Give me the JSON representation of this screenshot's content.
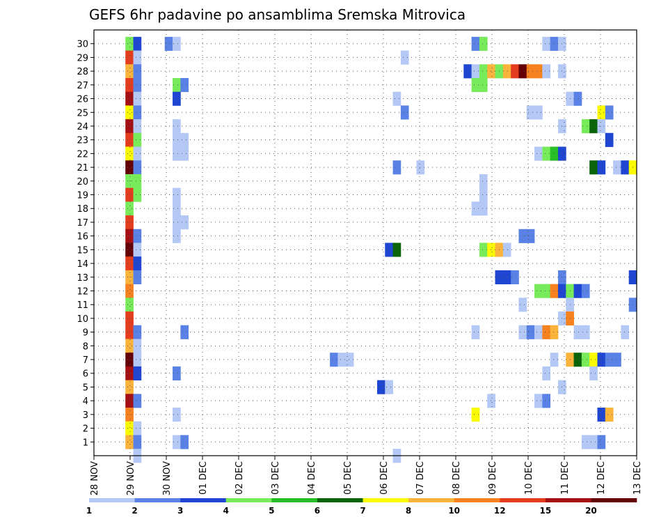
{
  "chart_data": {
    "type": "heatmap",
    "title": "GEFS 6hr padavine po ansamblima Sremska Mitrovica",
    "xlabel": "",
    "ylabel": "",
    "x_ticks": [
      "28 NOV",
      "29 NOV",
      "30 NOV",
      "01 DEC",
      "02 DEC",
      "03 DEC",
      "04 DEC",
      "05 DEC",
      "06 DEC",
      "07 DEC",
      "08 DEC",
      "09 DEC",
      "10 DEC",
      "11 DEC",
      "12 DEC",
      "13 DEC"
    ],
    "y_ticks": [
      1,
      2,
      3,
      4,
      5,
      6,
      7,
      8,
      9,
      10,
      11,
      12,
      13,
      14,
      15,
      16,
      17,
      18,
      19,
      20,
      21,
      22,
      23,
      24,
      25,
      26,
      27,
      28,
      29,
      30
    ],
    "ylim": [
      0,
      30
    ],
    "grid": true,
    "colorbar": {
      "labels": [
        "1",
        "2",
        "3",
        "4",
        "5",
        "6",
        "7",
        "8",
        "10",
        "12",
        "15",
        "20"
      ],
      "bins": [
        {
          "lo": 1,
          "hi": 2,
          "color": "#b4c8f5"
        },
        {
          "lo": 2,
          "hi": 3,
          "color": "#5a82e6"
        },
        {
          "lo": 3,
          "hi": 4,
          "color": "#1e46d2"
        },
        {
          "lo": 4,
          "hi": 5,
          "color": "#78eb5a"
        },
        {
          "lo": 5,
          "hi": 6,
          "color": "#28be28"
        },
        {
          "lo": 6,
          "hi": 7,
          "color": "#0a640a"
        },
        {
          "lo": 7,
          "hi": 8,
          "color": "#fafa00"
        },
        {
          "lo": 8,
          "hi": 10,
          "color": "#fab43c"
        },
        {
          "lo": 10,
          "hi": 12,
          "color": "#f5821e"
        },
        {
          "lo": 12,
          "hi": 15,
          "color": "#e63c1e"
        },
        {
          "lo": 15,
          "hi": 20,
          "color": "#a50f14"
        },
        {
          "lo": 20,
          "hi": 30,
          "color": "#640005"
        }
      ]
    },
    "cells": [
      {
        "member": 30,
        "step": 4,
        "value": 4.5
      },
      {
        "member": 30,
        "step": 5,
        "value": 3.5
      },
      {
        "member": 30,
        "step": 9,
        "value": 2.5
      },
      {
        "member": 30,
        "step": 10,
        "value": 1.5
      },
      {
        "member": 30,
        "step": 48,
        "value": 2.5
      },
      {
        "member": 30,
        "step": 49,
        "value": 4.5
      },
      {
        "member": 30,
        "step": 57,
        "value": 1.5
      },
      {
        "member": 30,
        "step": 58,
        "value": 2.5
      },
      {
        "member": 30,
        "step": 59,
        "value": 1.5
      },
      {
        "member": 29,
        "step": 4,
        "value": 13.5
      },
      {
        "member": 29,
        "step": 5,
        "value": 1.5
      },
      {
        "member": 29,
        "step": 39,
        "value": 1.5
      },
      {
        "member": 28,
        "step": 4,
        "value": 9
      },
      {
        "member": 28,
        "step": 5,
        "value": 2.5
      },
      {
        "member": 28,
        "step": 47,
        "value": 3.5
      },
      {
        "member": 28,
        "step": 48,
        "value": 1.5
      },
      {
        "member": 28,
        "step": 49,
        "value": 4.5
      },
      {
        "member": 28,
        "step": 50,
        "value": 9
      },
      {
        "member": 28,
        "step": 51,
        "value": 4.5
      },
      {
        "member": 28,
        "step": 52,
        "value": 9
      },
      {
        "member": 28,
        "step": 53,
        "value": 13.5
      },
      {
        "member": 28,
        "step": 54,
        "value": 25
      },
      {
        "member": 28,
        "step": 55,
        "value": 11
      },
      {
        "member": 28,
        "step": 56,
        "value": 11
      },
      {
        "member": 28,
        "step": 57,
        "value": 1.5
      },
      {
        "member": 28,
        "step": 59,
        "value": 1.5
      },
      {
        "member": 27,
        "step": 4,
        "value": 13.5
      },
      {
        "member": 27,
        "step": 5,
        "value": 2.5
      },
      {
        "member": 27,
        "step": 10,
        "value": 4.5
      },
      {
        "member": 27,
        "step": 11,
        "value": 2.5
      },
      {
        "member": 27,
        "step": 48,
        "value": 4.5
      },
      {
        "member": 27,
        "step": 49,
        "value": 4.5
      },
      {
        "member": 26,
        "step": 4,
        "value": 17.5
      },
      {
        "member": 26,
        "step": 5,
        "value": 1.5
      },
      {
        "member": 26,
        "step": 10,
        "value": 3.5
      },
      {
        "member": 26,
        "step": 38,
        "value": 1.5
      },
      {
        "member": 26,
        "step": 60,
        "value": 1.5
      },
      {
        "member": 26,
        "step": 61,
        "value": 2.5
      },
      {
        "member": 25,
        "step": 4,
        "value": 7.5
      },
      {
        "member": 25,
        "step": 5,
        "value": 2.5
      },
      {
        "member": 25,
        "step": 39,
        "value": 2.5
      },
      {
        "member": 25,
        "step": 55,
        "value": 1.5
      },
      {
        "member": 25,
        "step": 56,
        "value": 1.5
      },
      {
        "member": 25,
        "step": 64,
        "value": 7.5
      },
      {
        "member": 25,
        "step": 65,
        "value": 2.5
      },
      {
        "member": 24,
        "step": 4,
        "value": 17.5
      },
      {
        "member": 24,
        "step": 5,
        "value": 1.5
      },
      {
        "member": 24,
        "step": 10,
        "value": 1.5
      },
      {
        "member": 24,
        "step": 59,
        "value": 1.5
      },
      {
        "member": 24,
        "step": 62,
        "value": 4.5
      },
      {
        "member": 24,
        "step": 63,
        "value": 6.5
      },
      {
        "member": 24,
        "step": 64,
        "value": 1.5
      },
      {
        "member": 23,
        "step": 4,
        "value": 13.5
      },
      {
        "member": 23,
        "step": 5,
        "value": 4.5
      },
      {
        "member": 23,
        "step": 10,
        "value": 1.5
      },
      {
        "member": 23,
        "step": 11,
        "value": 1.5
      },
      {
        "member": 23,
        "step": 65,
        "value": 3.5
      },
      {
        "member": 22,
        "step": 4,
        "value": 7.5
      },
      {
        "member": 22,
        "step": 5,
        "value": 1.5
      },
      {
        "member": 22,
        "step": 10,
        "value": 1.5
      },
      {
        "member": 22,
        "step": 11,
        "value": 1.5
      },
      {
        "member": 22,
        "step": 56,
        "value": 1.5
      },
      {
        "member": 22,
        "step": 57,
        "value": 4.5
      },
      {
        "member": 22,
        "step": 58,
        "value": 5.5
      },
      {
        "member": 22,
        "step": 59,
        "value": 3.5
      },
      {
        "member": 21,
        "step": 4,
        "value": 25
      },
      {
        "member": 21,
        "step": 5,
        "value": 2.5
      },
      {
        "member": 21,
        "step": 38,
        "value": 2.5
      },
      {
        "member": 21,
        "step": 41,
        "value": 1.5
      },
      {
        "member": 21,
        "step": 63,
        "value": 6.5
      },
      {
        "member": 21,
        "step": 64,
        "value": 3.5
      },
      {
        "member": 21,
        "step": 66,
        "value": 1.5
      },
      {
        "member": 21,
        "step": 67,
        "value": 3.5
      },
      {
        "member": 21,
        "step": 68,
        "value": 7.5
      },
      {
        "member": 20,
        "step": 4,
        "value": 4.5
      },
      {
        "member": 20,
        "step": 5,
        "value": 4.5
      },
      {
        "member": 20,
        "step": 49,
        "value": 1.5
      },
      {
        "member": 19,
        "step": 4,
        "value": 13.5
      },
      {
        "member": 19,
        "step": 5,
        "value": 4.5
      },
      {
        "member": 19,
        "step": 10,
        "value": 1.5
      },
      {
        "member": 19,
        "step": 49,
        "value": 1.5
      },
      {
        "member": 18,
        "step": 4,
        "value": 4.5
      },
      {
        "member": 18,
        "step": 10,
        "value": 1.5
      },
      {
        "member": 18,
        "step": 48,
        "value": 1.5
      },
      {
        "member": 18,
        "step": 49,
        "value": 1.5
      },
      {
        "member": 17,
        "step": 4,
        "value": 13.5
      },
      {
        "member": 17,
        "step": 10,
        "value": 1.5
      },
      {
        "member": 17,
        "step": 11,
        "value": 1.5
      },
      {
        "member": 16,
        "step": 4,
        "value": 17.5
      },
      {
        "member": 16,
        "step": 5,
        "value": 2.5
      },
      {
        "member": 16,
        "step": 10,
        "value": 1.5
      },
      {
        "member": 16,
        "step": 54,
        "value": 2.5
      },
      {
        "member": 16,
        "step": 55,
        "value": 2.5
      },
      {
        "member": 15,
        "step": 4,
        "value": 25
      },
      {
        "member": 15,
        "step": 5,
        "value": 1.5
      },
      {
        "member": 15,
        "step": 37,
        "value": 3.5
      },
      {
        "member": 15,
        "step": 38,
        "value": 6.5
      },
      {
        "member": 15,
        "step": 49,
        "value": 4.5
      },
      {
        "member": 15,
        "step": 50,
        "value": 7.5
      },
      {
        "member": 15,
        "step": 51,
        "value": 9
      },
      {
        "member": 15,
        "step": 52,
        "value": 1.5
      },
      {
        "member": 14,
        "step": 4,
        "value": 13.5
      },
      {
        "member": 14,
        "step": 5,
        "value": 3.5
      },
      {
        "member": 13,
        "step": 4,
        "value": 9
      },
      {
        "member": 13,
        "step": 5,
        "value": 2.5
      },
      {
        "member": 13,
        "step": 51,
        "value": 3.5
      },
      {
        "member": 13,
        "step": 52,
        "value": 3.5
      },
      {
        "member": 13,
        "step": 53,
        "value": 2.5
      },
      {
        "member": 13,
        "step": 59,
        "value": 2.5
      },
      {
        "member": 13,
        "step": 68,
        "value": 3.5
      },
      {
        "member": 12,
        "step": 4,
        "value": 11
      },
      {
        "member": 12,
        "step": 56,
        "value": 4.5
      },
      {
        "member": 12,
        "step": 57,
        "value": 4.5
      },
      {
        "member": 12,
        "step": 58,
        "value": 11
      },
      {
        "member": 12,
        "step": 59,
        "value": 3.5
      },
      {
        "member": 12,
        "step": 60,
        "value": 4.5
      },
      {
        "member": 12,
        "step": 61,
        "value": 3.5
      },
      {
        "member": 12,
        "step": 62,
        "value": 2.5
      },
      {
        "member": 11,
        "step": 4,
        "value": 4.5
      },
      {
        "member": 11,
        "step": 54,
        "value": 1.5
      },
      {
        "member": 11,
        "step": 60,
        "value": 1.5
      },
      {
        "member": 11,
        "step": 68,
        "value": 2.5
      },
      {
        "member": 10,
        "step": 4,
        "value": 13.5
      },
      {
        "member": 10,
        "step": 59,
        "value": 1.5
      },
      {
        "member": 10,
        "step": 60,
        "value": 11
      },
      {
        "member": 9,
        "step": 4,
        "value": 13.5
      },
      {
        "member": 9,
        "step": 5,
        "value": 2.5
      },
      {
        "member": 9,
        "step": 11,
        "value": 2.5
      },
      {
        "member": 9,
        "step": 48,
        "value": 1.5
      },
      {
        "member": 9,
        "step": 54,
        "value": 1.5
      },
      {
        "member": 9,
        "step": 55,
        "value": 2.5
      },
      {
        "member": 9,
        "step": 56,
        "value": 1.5
      },
      {
        "member": 9,
        "step": 57,
        "value": 11
      },
      {
        "member": 9,
        "step": 58,
        "value": 9
      },
      {
        "member": 9,
        "step": 61,
        "value": 1.5
      },
      {
        "member": 9,
        "step": 62,
        "value": 1.5
      },
      {
        "member": 9,
        "step": 67,
        "value": 1.5
      },
      {
        "member": 8,
        "step": 4,
        "value": 9
      },
      {
        "member": 8,
        "step": 5,
        "value": 1.5
      },
      {
        "member": 7,
        "step": 4,
        "value": 25
      },
      {
        "member": 7,
        "step": 5,
        "value": 1.5
      },
      {
        "member": 7,
        "step": 30,
        "value": 2.5
      },
      {
        "member": 7,
        "step": 31,
        "value": 1.5
      },
      {
        "member": 7,
        "step": 32,
        "value": 1.5
      },
      {
        "member": 7,
        "step": 58,
        "value": 1.5
      },
      {
        "member": 7,
        "step": 60,
        "value": 9
      },
      {
        "member": 7,
        "step": 61,
        "value": 6.5
      },
      {
        "member": 7,
        "step": 62,
        "value": 4.5
      },
      {
        "member": 7,
        "step": 63,
        "value": 7.5
      },
      {
        "member": 7,
        "step": 64,
        "value": 3.5
      },
      {
        "member": 7,
        "step": 65,
        "value": 2.5
      },
      {
        "member": 7,
        "step": 66,
        "value": 2.5
      },
      {
        "member": 6,
        "step": 4,
        "value": 17.5
      },
      {
        "member": 6,
        "step": 5,
        "value": 3.5
      },
      {
        "member": 6,
        "step": 10,
        "value": 2.5
      },
      {
        "member": 6,
        "step": 57,
        "value": 1.5
      },
      {
        "member": 6,
        "step": 63,
        "value": 1.5
      },
      {
        "member": 5,
        "step": 4,
        "value": 9
      },
      {
        "member": 5,
        "step": 36,
        "value": 3.5
      },
      {
        "member": 5,
        "step": 37,
        "value": 1.5
      },
      {
        "member": 5,
        "step": 59,
        "value": 1.5
      },
      {
        "member": 4,
        "step": 4,
        "value": 17.5
      },
      {
        "member": 4,
        "step": 5,
        "value": 2.5
      },
      {
        "member": 4,
        "step": 50,
        "value": 1.5
      },
      {
        "member": 4,
        "step": 56,
        "value": 1.5
      },
      {
        "member": 4,
        "step": 57,
        "value": 2.5
      },
      {
        "member": 3,
        "step": 4,
        "value": 11
      },
      {
        "member": 3,
        "step": 10,
        "value": 1.5
      },
      {
        "member": 3,
        "step": 48,
        "value": 7.5
      },
      {
        "member": 3,
        "step": 64,
        "value": 3.5
      },
      {
        "member": 3,
        "step": 65,
        "value": 9
      },
      {
        "member": 2,
        "step": 4,
        "value": 7.5
      },
      {
        "member": 2,
        "step": 5,
        "value": 1.5
      },
      {
        "member": 1,
        "step": 4,
        "value": 9
      },
      {
        "member": 1,
        "step": 5,
        "value": 2.5
      },
      {
        "member": 1,
        "step": 10,
        "value": 1.5
      },
      {
        "member": 1,
        "step": 11,
        "value": 2.5
      },
      {
        "member": 1,
        "step": 62,
        "value": 1.5
      },
      {
        "member": 1,
        "step": 63,
        "value": 1.5
      },
      {
        "member": 1,
        "step": 64,
        "value": 2.5
      },
      {
        "member": 0,
        "step": 5,
        "value": 1.5
      },
      {
        "member": 0,
        "step": 38,
        "value": 1.5
      }
    ]
  }
}
